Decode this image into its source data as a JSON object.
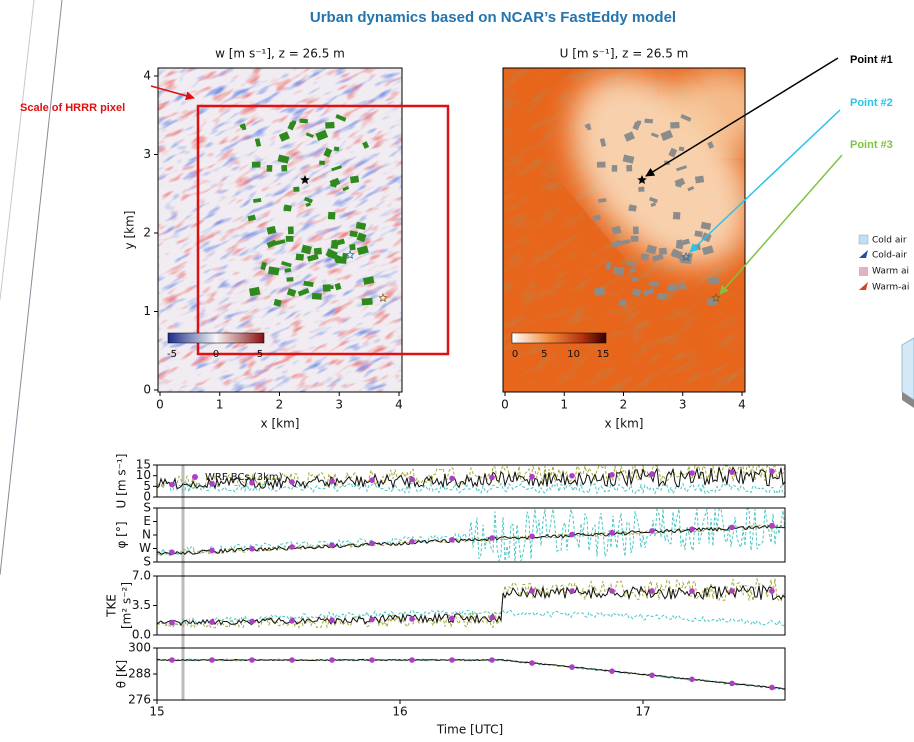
{
  "title": "Urban dynamics based on NCAR’s FastEddy model",
  "annotation": "Scale of HRRR pixel",
  "points": [
    "Point #1",
    "Point #2",
    "Point #3"
  ],
  "maps": [
    {
      "title": "w [m s⁻¹], z = 26.5 m",
      "xlabel": "x [km]",
      "ylabel": "y [km]",
      "xticks": [
        "0",
        "1",
        "2",
        "3",
        "4"
      ],
      "yticks": [
        "0",
        "1",
        "2",
        "3",
        "4"
      ],
      "colorbar_ticks": [
        "-5",
        "0",
        "5"
      ]
    },
    {
      "title": "U [m s⁻¹], z = 26.5 m",
      "xlabel": "x [km]",
      "xticks": [
        "0",
        "1",
        "2",
        "3",
        "4"
      ],
      "colorbar_ticks": [
        "0",
        "5",
        "10",
        "15"
      ]
    }
  ],
  "timeseries": {
    "legend": "WRF BCs (3km)",
    "panels": [
      {
        "ylabel": [
          "U [m s⁻¹]"
        ],
        "yticks": [
          "15",
          "10",
          "5",
          "0"
        ]
      },
      {
        "ylabel": [
          "φ [°]"
        ],
        "yticks": [
          "S",
          "E",
          "N",
          "W",
          "S"
        ]
      },
      {
        "ylabel": [
          "TKE",
          "[m² s⁻²]"
        ],
        "yticks": [
          "7.0",
          "3.5",
          "0.0"
        ]
      },
      {
        "ylabel": [
          "θ [K]"
        ],
        "yticks": [
          "300",
          "288",
          "276"
        ]
      }
    ],
    "xticks": [
      "15",
      "16",
      "17"
    ],
    "xlabel": "Time [UTC]"
  },
  "side_legend": [
    "Cold air",
    "Cold-air",
    "Warm ai",
    "Warm-ai"
  ]
}
